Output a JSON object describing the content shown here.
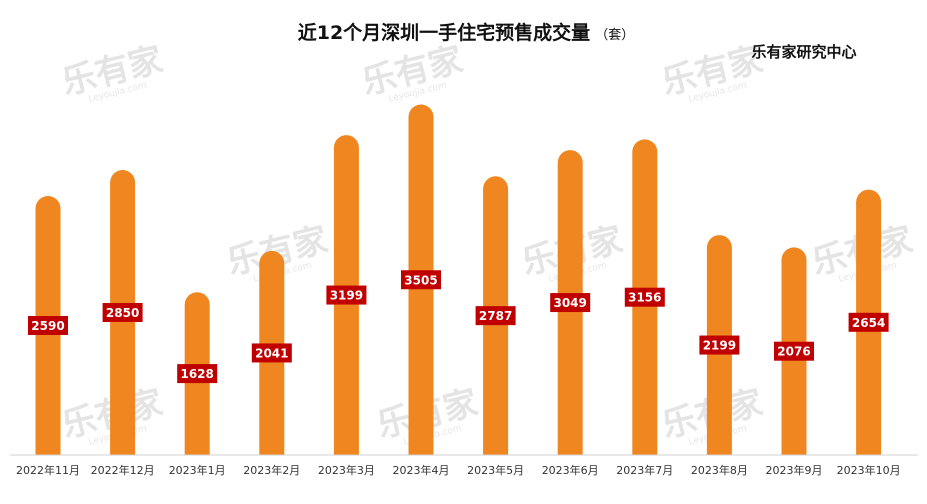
{
  "chart_data": {
    "type": "bar",
    "title": "近12个月深圳一手住宅预售成交量",
    "unit": "（套）",
    "source": "乐有家研究中心",
    "watermark": "乐有家",
    "watermark_sub": "Leyoujia.com",
    "categories": [
      "2022年11月",
      "2022年12月",
      "2023年1月",
      "2023年2月",
      "2023年3月",
      "2023年4月",
      "2023年5月",
      "2023年6月",
      "2023年7月",
      "2023年8月",
      "2023年9月",
      "2023年10月"
    ],
    "values": [
      2590,
      2850,
      1628,
      2041,
      3199,
      3505,
      2787,
      3049,
      3156,
      2199,
      2076,
      2654
    ],
    "ylim": [
      0,
      3550
    ],
    "grid": false,
    "legend": "none",
    "colors": {
      "bar": "#f0861f",
      "label_bg": "#c00000",
      "label_text": "#ffffff"
    }
  }
}
